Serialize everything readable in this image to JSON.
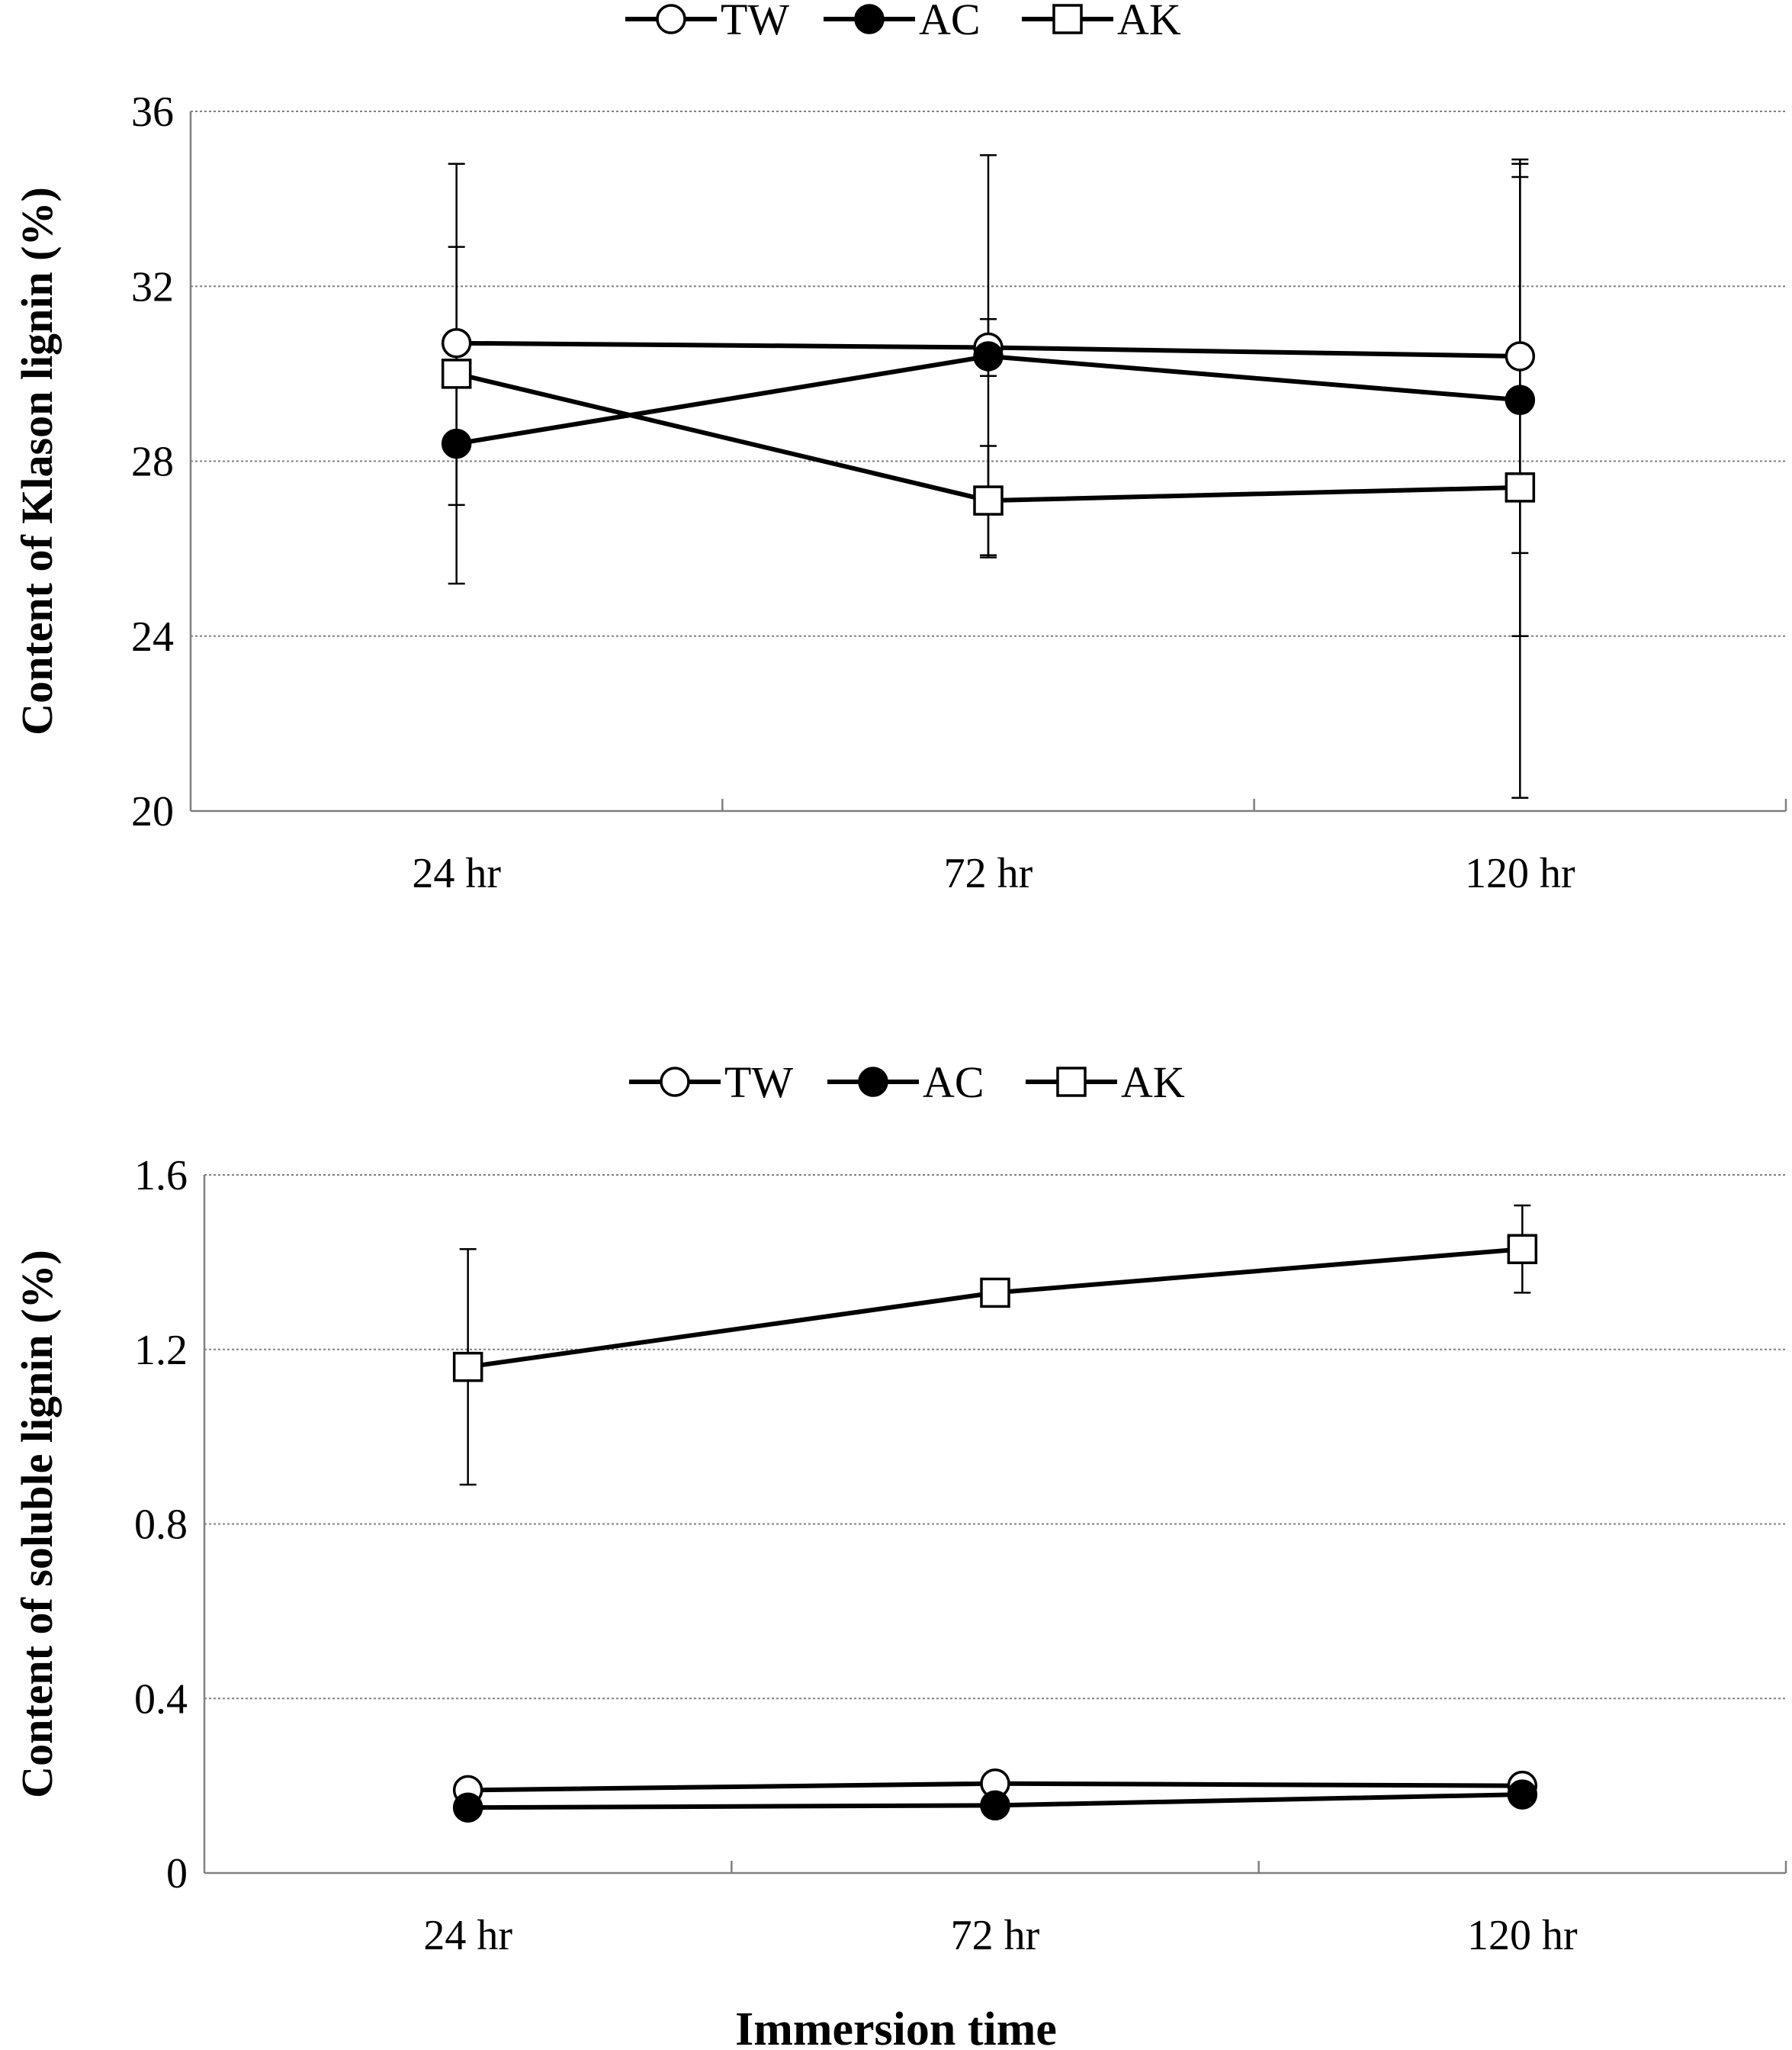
{
  "figure": {
    "xlabel": "Immersion time"
  },
  "chart_data": [
    {
      "type": "line",
      "title": "",
      "xlabel": "",
      "ylabel": "Content of Klason lignin (%)",
      "categories": [
        "24 hr",
        "72 hr",
        "120 hr"
      ],
      "ylim": [
        20,
        36
      ],
      "yticks": [
        "20",
        "24",
        "28",
        "32",
        "36"
      ],
      "grid": true,
      "legend": "top-center",
      "series": [
        {
          "name": "TW",
          "marker": "open-circle",
          "values": [
            30.7,
            30.6,
            30.4
          ],
          "error": [
            2.2,
            0.65,
            4.5
          ]
        },
        {
          "name": "AC",
          "marker": "filled-circle",
          "values": [
            28.4,
            30.4,
            29.4
          ],
          "error": [
            1.4,
            4.6,
            5.4
          ]
        },
        {
          "name": "AK",
          "marker": "open-square",
          "values": [
            30.0,
            27.1,
            27.4
          ],
          "error": [
            4.8,
            1.25,
            7.1
          ]
        }
      ]
    },
    {
      "type": "line",
      "title": "",
      "xlabel": "",
      "ylabel": "Content of soluble lignin (%)",
      "categories": [
        "24 hr",
        "72 hr",
        "120 hr"
      ],
      "ylim": [
        0,
        1.6
      ],
      "yticks": [
        "0",
        "0.4",
        "0.8",
        "1.2",
        "1.6"
      ],
      "grid": true,
      "legend": "top-center",
      "series": [
        {
          "name": "TW",
          "marker": "open-circle",
          "values": [
            0.19,
            0.205,
            0.2
          ],
          "error": [
            0,
            0,
            0
          ]
        },
        {
          "name": "AC",
          "marker": "filled-circle",
          "values": [
            0.15,
            0.155,
            0.18
          ],
          "error": [
            0,
            0,
            0
          ]
        },
        {
          "name": "AK",
          "marker": "open-square",
          "values": [
            1.16,
            1.33,
            1.43
          ],
          "error": [
            0.27,
            0.03,
            0.1
          ]
        }
      ]
    }
  ]
}
